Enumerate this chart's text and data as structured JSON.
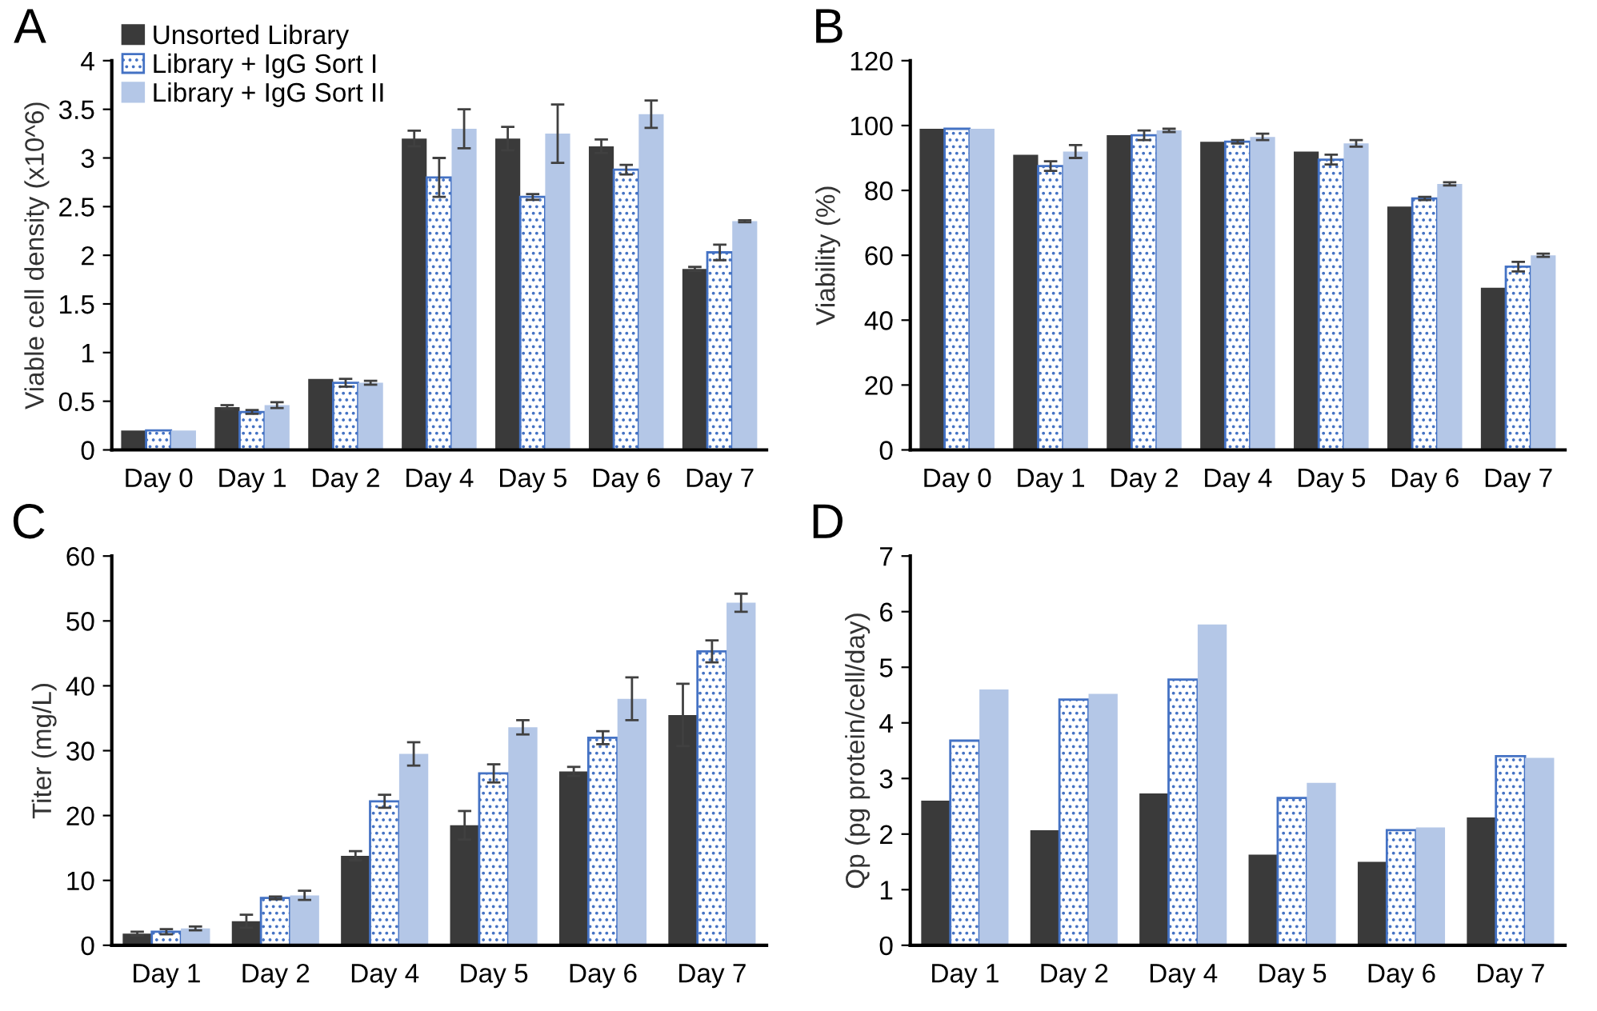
{
  "chart_data": [
    {
      "type": "bar",
      "title": "A",
      "ylabel": "Viable cell density (x10^6)",
      "categories": [
        "Day 0",
        "Day 1",
        "Day 2",
        "Day 4",
        "Day 5",
        "Day 6",
        "Day 7"
      ],
      "ylim": [
        0,
        4
      ],
      "yticks": [
        0,
        0.5,
        1,
        1.5,
        2,
        2.5,
        3,
        3.5,
        4
      ],
      "grid": false,
      "legend": "top left",
      "series": [
        {
          "name": "Unsorted Library",
          "color": "#3a3a3a",
          "values": [
            0.2,
            0.44,
            0.73,
            3.2,
            3.2,
            3.12,
            1.86
          ],
          "errors": [
            null,
            0.02,
            null,
            0.08,
            0.12,
            0.07,
            0.02
          ]
        },
        {
          "name": "Library + IgG Sort I",
          "color": "#4472c4",
          "values": [
            0.2,
            0.39,
            0.69,
            2.8,
            2.6,
            2.88,
            2.03
          ],
          "errors": [
            null,
            0.02,
            0.04,
            0.2,
            0.03,
            0.05,
            0.08
          ]
        },
        {
          "name": "Library + IgG Sort II",
          "color": "#b4c7e7",
          "values": [
            0.2,
            0.46,
            0.69,
            3.3,
            3.25,
            3.45,
            2.35
          ],
          "errors": [
            null,
            0.03,
            0.02,
            0.2,
            0.3,
            0.14,
            0.01
          ]
        }
      ]
    },
    {
      "type": "bar",
      "title": "B",
      "ylabel": "Viability (%)",
      "categories": [
        "Day 0",
        "Day 1",
        "Day 2",
        "Day 4",
        "Day 5",
        "Day 6",
        "Day 7"
      ],
      "ylim": [
        0,
        120
      ],
      "yticks": [
        0,
        20,
        40,
        60,
        80,
        100,
        120
      ],
      "grid": false,
      "series": [
        {
          "color": "#3a3a3a",
          "values": [
            99,
            91,
            97,
            95,
            92,
            75,
            50
          ],
          "errors": [
            null,
            null,
            null,
            null,
            null,
            null,
            null
          ]
        },
        {
          "color": "#4472c4",
          "values": [
            99,
            87.5,
            97,
            95,
            89.5,
            77.5,
            56.5
          ],
          "errors": [
            null,
            1.5,
            1.5,
            0.5,
            1.5,
            0.5,
            1.5
          ]
        },
        {
          "color": "#b4c7e7",
          "values": [
            99,
            92,
            98.5,
            96.5,
            94.5,
            82,
            60
          ],
          "errors": [
            null,
            2,
            0.5,
            1,
            1,
            0.5,
            0.5
          ]
        }
      ]
    },
    {
      "type": "bar",
      "title": "C",
      "ylabel": "Titer (mg/L)",
      "categories": [
        "Day 1",
        "Day 2",
        "Day 4",
        "Day 5",
        "Day 6",
        "Day 7"
      ],
      "ylim": [
        0,
        60
      ],
      "yticks": [
        0,
        10,
        20,
        30,
        40,
        50,
        60
      ],
      "grid": false,
      "series": [
        {
          "color": "#3a3a3a",
          "values": [
            1.8,
            3.7,
            13.8,
            18.5,
            26.8,
            35.5
          ],
          "errors": [
            0.3,
            1,
            0.7,
            2.2,
            0.7,
            4.8
          ]
        },
        {
          "color": "#4472c4",
          "values": [
            2.1,
            7.3,
            22.2,
            26.5,
            32,
            45.3
          ],
          "errors": [
            0.4,
            0.2,
            1,
            1.4,
            1,
            1.7
          ]
        },
        {
          "color": "#b4c7e7",
          "values": [
            2.6,
            7.7,
            29.5,
            33.6,
            38,
            52.8
          ],
          "errors": [
            0.3,
            0.7,
            1.8,
            1.1,
            3.3,
            1.4
          ]
        }
      ]
    },
    {
      "type": "bar",
      "title": "D",
      "ylabel": "Qp (pg protein/cell/day)",
      "categories": [
        "Day 1",
        "Day 2",
        "Day 4",
        "Day 5",
        "Day 6",
        "Day 7"
      ],
      "ylim": [
        0,
        7
      ],
      "yticks": [
        0,
        1,
        2,
        3,
        4,
        5,
        6,
        7
      ],
      "grid": false,
      "series": [
        {
          "color": "#3a3a3a",
          "values": [
            2.6,
            2.07,
            2.73,
            1.63,
            1.5,
            2.3
          ]
        },
        {
          "color": "#4472c4",
          "values": [
            3.68,
            4.42,
            4.78,
            2.65,
            2.07,
            3.4
          ]
        },
        {
          "color": "#b4c7e7",
          "values": [
            4.6,
            4.52,
            5.77,
            2.92,
            2.12,
            3.37
          ]
        }
      ]
    }
  ]
}
